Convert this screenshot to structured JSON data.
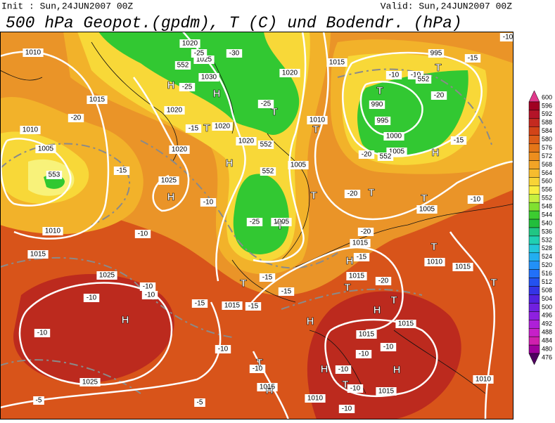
{
  "header": {
    "init": "Init : Sun,24JUN2007 00Z",
    "valid": "Valid: Sun,24JUN2007 00Z",
    "title": "500 hPa Geopot.(gpdm), T (C) und Bodendr. (hPa)"
  },
  "colorbar": {
    "levels": [
      600,
      596,
      592,
      588,
      584,
      580,
      576,
      572,
      568,
      564,
      560,
      556,
      552,
      548,
      544,
      540,
      536,
      532,
      528,
      524,
      520,
      516,
      512,
      508,
      504,
      500,
      496,
      492,
      488,
      484,
      480,
      476
    ],
    "colors": [
      "#e03a8c",
      "#a00022",
      "#b41428",
      "#c42a20",
      "#d24418",
      "#dc5c18",
      "#e47618",
      "#ec8e1e",
      "#f2a426",
      "#f6bc2e",
      "#f8d436",
      "#f8ee40",
      "#c6f040",
      "#80e030",
      "#3ccc30",
      "#22be3c",
      "#20c684",
      "#20d0b2",
      "#22c6da",
      "#22aef0",
      "#2290f8",
      "#2270f8",
      "#2452f0",
      "#3434e6",
      "#5222e0",
      "#7020e0",
      "#8e20e0",
      "#ae20d8",
      "#c620c8",
      "#d020ae",
      "#a0009e",
      "#500060"
    ]
  },
  "map_labels": [
    "1010",
    "1020",
    "1025",
    "1030",
    "-25",
    "-30",
    "552",
    "H",
    "-25",
    "H",
    "1015",
    "1020",
    "-20",
    "1010",
    "1005",
    "553",
    "-15",
    "T",
    "1020",
    "-15",
    "1020",
    "1020",
    "552",
    "H",
    "1025",
    "H",
    "-10",
    "1010",
    "-10",
    "552",
    "1005",
    "-25",
    "1005",
    "T",
    "T",
    "-25",
    "1020",
    "1010",
    "T",
    "1015",
    "995",
    "T",
    "T",
    "990",
    "995",
    "1000",
    "1005",
    "552",
    "-20",
    "H",
    "-15",
    "-10",
    "-10",
    "-20",
    "552",
    "-15",
    "1015",
    "T",
    "-20",
    "T",
    "T",
    "1005",
    "-10",
    "-20",
    "1015",
    "H",
    "-15",
    "T",
    "1010",
    "1015",
    "T",
    "-15",
    "-15",
    "1015",
    "T",
    "-20",
    "T",
    "1025",
    "-10",
    "-10",
    "-10",
    "H",
    "-10",
    "-15",
    "1015",
    "-15",
    "H",
    "H",
    "T",
    "1015",
    "1015",
    "-10",
    "-10",
    "H",
    "H",
    "-10",
    "T",
    "-10",
    "1015",
    "-10",
    "1025",
    "-5",
    "-5",
    "-10",
    "T",
    "1015",
    "H",
    "1010",
    "-10",
    "1010",
    "-10"
  ]
}
